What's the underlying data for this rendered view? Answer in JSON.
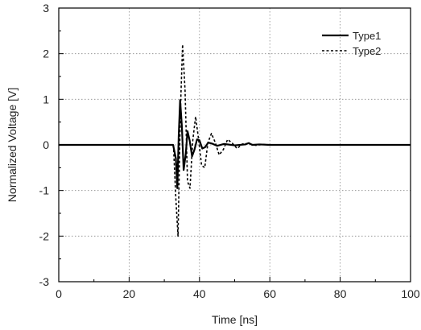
{
  "chart_data": {
    "type": "line",
    "title": "",
    "xlabel": "Time [ns]",
    "ylabel": "Normalized Voltage [V]",
    "xlim": [
      0,
      100
    ],
    "ylim": [
      -3,
      3
    ],
    "x_ticks": [
      0,
      20,
      40,
      60,
      80,
      100
    ],
    "y_ticks": [
      -3,
      -2,
      -1,
      0,
      1,
      2,
      3
    ],
    "grid": "dotted",
    "legend_position": "top-right",
    "series": [
      {
        "name": "Type1",
        "style": "solid",
        "color": "#000000",
        "x": [
          0,
          10,
          20,
          30,
          32.5,
          33.3,
          33.7,
          34.1,
          34.5,
          35.0,
          35.5,
          36.1,
          36.6,
          37.2,
          37.9,
          38.6,
          39.3,
          40.0,
          40.8,
          41.6,
          42.5,
          43.5,
          45,
          47,
          50,
          53,
          54,
          55,
          57,
          60,
          70,
          80,
          90,
          100
        ],
        "y": [
          0,
          0,
          0,
          0,
          0,
          -0.3,
          -0.95,
          0.2,
          0.98,
          0.4,
          -0.55,
          -0.2,
          0.3,
          0.1,
          -0.25,
          -0.1,
          0.12,
          0.1,
          -0.08,
          -0.05,
          0.05,
          0.03,
          -0.02,
          0.02,
          -0.01,
          0.01,
          0.04,
          0.0,
          0.01,
          0,
          0,
          0,
          0,
          0
        ]
      },
      {
        "name": "Type2",
        "style": "dashed",
        "color": "#000000",
        "x": [
          0,
          10,
          20,
          30,
          32.6,
          33.3,
          33.9,
          34.6,
          35.2,
          35.9,
          36.6,
          37.3,
          38.1,
          38.9,
          39.7,
          40.6,
          41.5,
          42.4,
          43.4,
          44.5,
          45.6,
          46.8,
          48.0,
          49.3,
          50.7,
          52.2,
          54.0,
          56,
          58,
          60,
          70,
          80,
          90,
          100
        ],
        "y": [
          0,
          0,
          0,
          0,
          0,
          -1.2,
          -2.0,
          0.8,
          2.2,
          1.2,
          -0.8,
          -0.95,
          0.1,
          0.62,
          0.15,
          -0.45,
          -0.5,
          0.05,
          0.25,
          0.05,
          -0.22,
          -0.1,
          0.12,
          0.04,
          -0.08,
          0.02,
          0.03,
          -0.01,
          0.01,
          0,
          0,
          0,
          0,
          0
        ]
      }
    ]
  }
}
